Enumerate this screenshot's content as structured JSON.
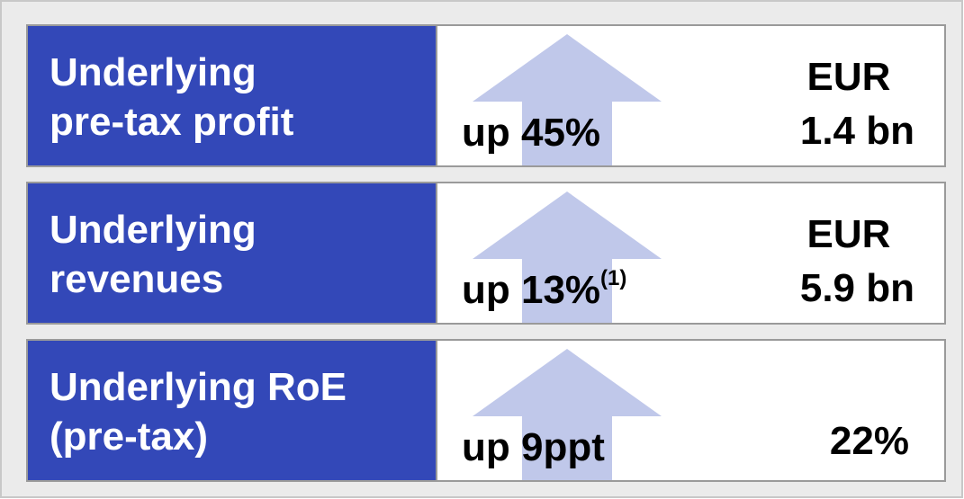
{
  "rows": [
    {
      "label": [
        "Underlying",
        "pre-tax profit"
      ],
      "change": "up 45%",
      "value": [
        "EUR",
        "1.4 bn"
      ]
    },
    {
      "label": [
        "Underlying",
        "revenues"
      ],
      "change": "up 13%",
      "note": "(1)",
      "value": [
        "EUR",
        "5.9 bn"
      ]
    },
    {
      "label": [
        "Underlying RoE",
        "(pre-tax)"
      ],
      "change": "up 9ppt",
      "value": [
        "22%"
      ]
    }
  ]
}
